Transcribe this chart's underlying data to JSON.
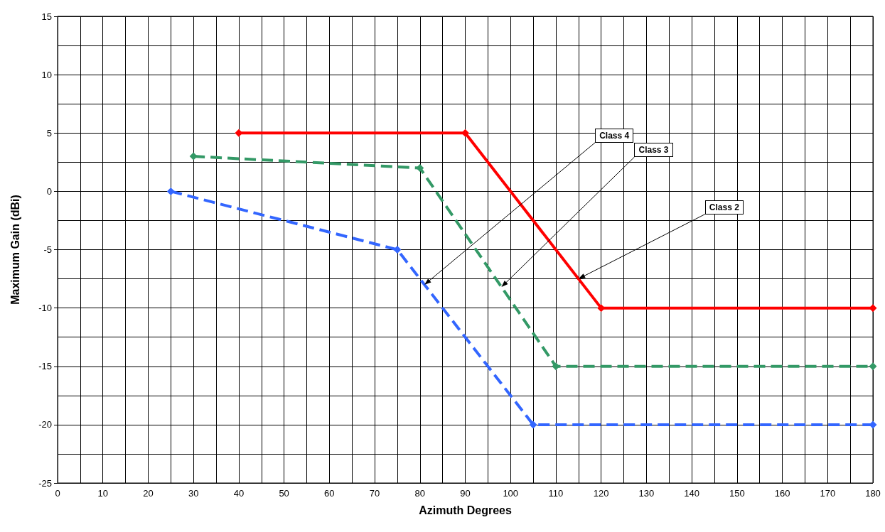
{
  "chart_data": {
    "type": "line",
    "xlabel": "Azimuth Degrees",
    "ylabel": "Maximum Gain (dBi)",
    "series": [
      {
        "color": "#ff0000",
        "line_style": "solid",
        "x": [
          40,
          90,
          120,
          180
        ],
        "values": [
          5,
          5,
          -10,
          -10
        ]
      },
      {
        "color": "#339966",
        "line_style": "dashed",
        "x": [
          30,
          80,
          110,
          180
        ],
        "values": [
          3,
          2,
          -15,
          -15
        ]
      },
      {
        "color": "#3366ff",
        "line_style": "dashed",
        "x": [
          25,
          75,
          105,
          180
        ],
        "values": [
          0,
          -5,
          -20,
          -20
        ]
      }
    ],
    "xlim": [
      0,
      180
    ],
    "xticks": [
      0,
      10,
      20,
      30,
      40,
      50,
      60,
      70,
      80,
      90,
      100,
      110,
      120,
      130,
      140,
      150,
      160,
      170,
      180
    ],
    "ylim": [
      -25,
      15
    ],
    "yticks": [
      -25,
      -20,
      -15,
      -10,
      -5,
      0,
      5,
      10,
      15
    ],
    "grid": true,
    "marker": "diamond",
    "annotations": [
      {
        "text": "Class 4",
        "x": 81,
        "y": -8
      },
      {
        "text": "Class 3",
        "x": 98,
        "y": -8.2
      },
      {
        "text": "Class 2",
        "x": 115,
        "y": -7.5
      }
    ]
  }
}
